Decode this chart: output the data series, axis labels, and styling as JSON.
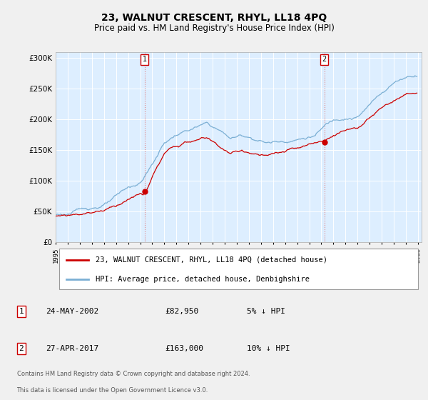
{
  "title": "23, WALNUT CRESCENT, RHYL, LL18 4PQ",
  "subtitle": "Price paid vs. HM Land Registry's House Price Index (HPI)",
  "ylim": [
    0,
    310000
  ],
  "yticks": [
    0,
    50000,
    100000,
    150000,
    200000,
    250000,
    300000
  ],
  "ytick_labels": [
    "£0",
    "£50K",
    "£100K",
    "£150K",
    "£200K",
    "£250K",
    "£300K"
  ],
  "sale1_price": 82950,
  "sale2_price": 163000,
  "sale1_year": 2002.375,
  "sale2_year": 2017.25,
  "hpi_color": "#7bafd4",
  "price_color": "#cc0000",
  "vline_color": "#e08080",
  "plot_bg_color": "#ddeeff",
  "bg_color": "#f0f0f0",
  "grid_color": "#ffffff",
  "legend_entry1": "23, WALNUT CRESCENT, RHYL, LL18 4PQ (detached house)",
  "legend_entry2": "HPI: Average price, detached house, Denbighshire",
  "table_row1": [
    "1",
    "24-MAY-2002",
    "£82,950",
    "5% ↓ HPI"
  ],
  "table_row2": [
    "2",
    "27-APR-2017",
    "£163,000",
    "10% ↓ HPI"
  ],
  "footer1": "Contains HM Land Registry data © Crown copyright and database right 2024.",
  "footer2": "This data is licensed under the Open Government Licence v3.0.",
  "start_year": 1995,
  "end_year": 2025
}
